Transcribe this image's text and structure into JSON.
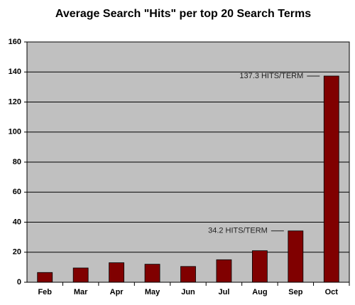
{
  "chart_data": {
    "type": "bar",
    "title": "Average Search \"Hits\" per top 20 Search Terms",
    "categories": [
      "Feb",
      "Mar",
      "Apr",
      "May",
      "Jun",
      "Jul",
      "Aug",
      "Sep",
      "Oct"
    ],
    "values": [
      6.5,
      9.5,
      13,
      12,
      10.5,
      15,
      21,
      34.2,
      137.3
    ],
    "value_labels": [
      null,
      null,
      null,
      null,
      null,
      null,
      null,
      "34.2 HITS/TERM",
      "137.3 HITS/TERM"
    ],
    "color": "#800000",
    "ylim": [
      0,
      160
    ],
    "yticks": [
      0,
      20,
      40,
      60,
      80,
      100,
      120,
      140,
      160
    ],
    "grid": true
  }
}
